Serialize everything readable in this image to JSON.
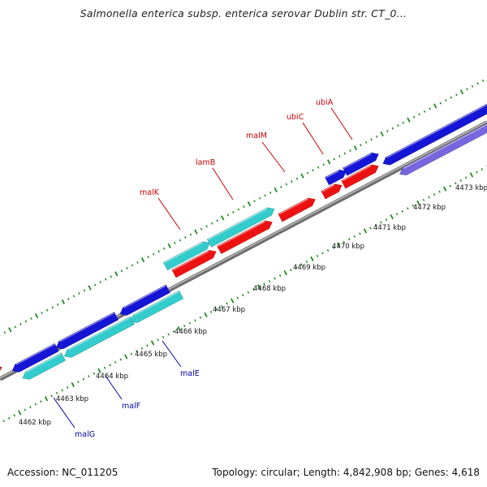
{
  "title": "Salmonella enterica subsp. enterica serovar Dublin str. CT_0...",
  "footer": {
    "accession": "Accession: NC_011205",
    "summary": "Topology: circular; Length: 4,842,908 bp; Genes: 4,618"
  },
  "colors": {
    "backbone": "#8a8a8a",
    "tick": "#1d8a1d",
    "forward_gene": "#ee1111",
    "forward_gene_alt": "#1515d6",
    "reverse_gene": "#33cccc",
    "reverse_gene_alt": "#1515d6",
    "purple_gene": "#7766dd",
    "forward_label": "#cc0000",
    "reverse_label": "#0000aa"
  },
  "ruler": [
    {
      "kbp": 4462,
      "label": "4462 kbp"
    },
    {
      "kbp": 4463,
      "label": "4463 kbp"
    },
    {
      "kbp": 4464,
      "label": "4464 kbp"
    },
    {
      "kbp": 4465,
      "label": "4465 kbp"
    },
    {
      "kbp": 4466,
      "label": "4466 kbp"
    },
    {
      "kbp": 4467,
      "label": "4467 kbp"
    },
    {
      "kbp": 4468,
      "label": "4468 kbp"
    },
    {
      "kbp": 4469,
      "label": "4469 kbp"
    },
    {
      "kbp": 4470,
      "label": "4470 kbp"
    },
    {
      "kbp": 4471,
      "label": "4471 kbp"
    },
    {
      "kbp": 4472,
      "label": "4472 kbp"
    },
    {
      "kbp": 4473,
      "label": "4473 kbp"
    }
  ],
  "gene_labels": [
    {
      "name": "malK",
      "strand": "forward"
    },
    {
      "name": "lamB",
      "strand": "forward"
    },
    {
      "name": "malM",
      "strand": "forward"
    },
    {
      "name": "ubiC",
      "strand": "forward"
    },
    {
      "name": "ubiA",
      "strand": "forward"
    },
    {
      "name": "malE",
      "strand": "reverse"
    },
    {
      "name": "malF",
      "strand": "reverse"
    },
    {
      "name": "malG",
      "strand": "reverse"
    }
  ]
}
